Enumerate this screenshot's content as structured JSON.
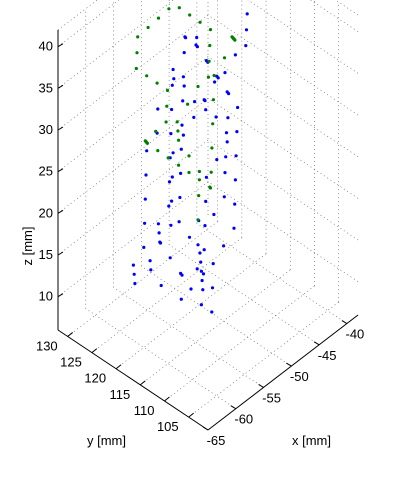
{
  "chart_data": {
    "type": "scatter",
    "projection": "3d",
    "title": "",
    "xlabel": "x [mm]",
    "ylabel": "y [mm]",
    "zlabel": "z [mm]",
    "xlim": [
      -65,
      -38
    ],
    "ylim": [
      101,
      132
    ],
    "zlim": [
      6,
      42
    ],
    "x_ticks": [
      "-65",
      "-60",
      "-55",
      "-50",
      "-45",
      "-40"
    ],
    "y_ticks": [
      "105",
      "110",
      "115",
      "120",
      "125",
      "130"
    ],
    "z_ticks": [
      "10",
      "15",
      "20",
      "25",
      "30",
      "35",
      "40"
    ],
    "grid": true,
    "legend": "none",
    "series": [
      {
        "color": "#0000ff",
        "points_xyz": [
          [
            -55,
            118,
            10
          ],
          [
            -54,
            119,
            12
          ],
          [
            -53,
            117,
            13
          ],
          [
            -52,
            118,
            15
          ],
          [
            -51,
            119,
            17
          ],
          [
            -50,
            117,
            18
          ],
          [
            -49,
            116,
            20
          ],
          [
            -48,
            117,
            22
          ],
          [
            -47,
            118,
            23
          ],
          [
            -46,
            119,
            25
          ],
          [
            -47,
            120,
            27
          ],
          [
            -48,
            121,
            28
          ],
          [
            -49,
            120,
            30
          ],
          [
            -50,
            119,
            31
          ],
          [
            -49,
            118,
            33
          ],
          [
            -48,
            117,
            34
          ],
          [
            -47,
            116,
            36
          ],
          [
            -46,
            115,
            37
          ],
          [
            -45,
            116,
            38
          ],
          [
            -44,
            117,
            39
          ],
          [
            -56,
            121,
            11
          ],
          [
            -57,
            122,
            13
          ],
          [
            -58,
            121,
            15
          ],
          [
            -57,
            120,
            17
          ],
          [
            -56,
            119,
            19
          ],
          [
            -55,
            120,
            21
          ],
          [
            -54,
            121,
            23
          ],
          [
            -53,
            122,
            25
          ],
          [
            -52,
            121,
            27
          ],
          [
            -51,
            120,
            29
          ],
          [
            -50,
            121,
            30
          ],
          [
            -51,
            122,
            32
          ],
          [
            -52,
            123,
            33
          ],
          [
            -53,
            122,
            35
          ],
          [
            -54,
            121,
            34
          ],
          [
            -55,
            120,
            32
          ],
          [
            -56,
            119,
            30
          ],
          [
            -57,
            118,
            28
          ],
          [
            -58,
            117,
            26
          ],
          [
            -59,
            116,
            24
          ],
          [
            -60,
            117,
            22
          ],
          [
            -59,
            118,
            20
          ],
          [
            -58,
            119,
            18
          ],
          [
            -57,
            118,
            16
          ],
          [
            -56,
            117,
            14
          ],
          [
            -55,
            116,
            12
          ],
          [
            -54,
            115,
            10
          ],
          [
            -53,
            114,
            9
          ],
          [
            -52,
            115,
            11
          ],
          [
            -51,
            116,
            13
          ],
          [
            -50,
            115,
            15
          ],
          [
            -49,
            114,
            17
          ],
          [
            -48,
            115,
            19
          ],
          [
            -47,
            116,
            21
          ],
          [
            -46,
            117,
            23
          ],
          [
            -45,
            118,
            25
          ],
          [
            -44,
            119,
            27
          ],
          [
            -45,
            120,
            29
          ],
          [
            -46,
            121,
            31
          ],
          [
            -47,
            122,
            33
          ],
          [
            -48,
            123,
            35
          ],
          [
            -49,
            124,
            36
          ],
          [
            -50,
            123,
            37
          ],
          [
            -51,
            122,
            36
          ],
          [
            -52,
            121,
            34
          ],
          [
            -53,
            120,
            32
          ],
          [
            -54,
            119,
            30
          ],
          [
            -55,
            118,
            28
          ],
          [
            -56,
            117,
            26
          ],
          [
            -57,
            116,
            24
          ],
          [
            -58,
            115,
            22
          ],
          [
            -57,
            114,
            20
          ],
          [
            -56,
            113,
            18
          ],
          [
            -55,
            114,
            16
          ],
          [
            -54,
            115,
            14
          ],
          [
            -53,
            116,
            12
          ],
          [
            -52,
            117,
            10
          ],
          [
            -51,
            118,
            11
          ],
          [
            -50,
            119,
            13
          ],
          [
            -49,
            120,
            15
          ],
          [
            -48,
            121,
            17
          ],
          [
            -47,
            122,
            19
          ],
          [
            -46,
            121,
            21
          ],
          [
            -45,
            120,
            23
          ],
          [
            -44,
            121,
            25
          ],
          [
            -43,
            122,
            27
          ],
          [
            -44,
            123,
            29
          ],
          [
            -45,
            124,
            31
          ],
          [
            -46,
            125,
            33
          ],
          [
            -47,
            124,
            35
          ],
          [
            -59,
            123,
            12
          ],
          [
            -60,
            122,
            14
          ],
          [
            -61,
            121,
            16
          ],
          [
            -60,
            120,
            18
          ],
          [
            -59,
            121,
            20
          ],
          [
            -58,
            122,
            22
          ],
          [
            -57,
            123,
            24
          ],
          [
            -56,
            124,
            26
          ],
          [
            -55,
            123,
            28
          ],
          [
            -54,
            124,
            30
          ]
        ]
      },
      {
        "color": "#008000",
        "points_xyz": [
          [
            -52,
            118,
            18
          ],
          [
            -51,
            119,
            20
          ],
          [
            -50,
            120,
            22
          ],
          [
            -51,
            121,
            24
          ],
          [
            -52,
            122,
            26
          ],
          [
            -53,
            121,
            28
          ],
          [
            -54,
            120,
            30
          ],
          [
            -53,
            119,
            32
          ],
          [
            -52,
            118,
            34
          ],
          [
            -51,
            117,
            35
          ],
          [
            -50,
            118,
            36
          ],
          [
            -49,
            119,
            37
          ],
          [
            -48,
            120,
            38
          ],
          [
            -49,
            121,
            39
          ],
          [
            -50,
            122,
            40
          ],
          [
            -51,
            123,
            41
          ],
          [
            -52,
            124,
            41
          ],
          [
            -53,
            125,
            40
          ],
          [
            -54,
            126,
            39
          ],
          [
            -55,
            127,
            38
          ],
          [
            -56,
            126,
            37
          ],
          [
            -57,
            125,
            36
          ],
          [
            -56,
            124,
            35
          ],
          [
            -55,
            123,
            34
          ],
          [
            -54,
            122,
            33
          ],
          [
            -55,
            121,
            32
          ],
          [
            -56,
            120,
            31
          ],
          [
            -57,
            121,
            30
          ],
          [
            -58,
            122,
            29
          ],
          [
            -57,
            123,
            28
          ],
          [
            -56,
            124,
            27
          ],
          [
            -55,
            125,
            26
          ],
          [
            -54,
            124,
            25
          ],
          [
            -53,
            123,
            24
          ],
          [
            -52,
            122,
            23
          ],
          [
            -51,
            121,
            22
          ],
          [
            -50,
            120,
            21
          ],
          [
            -49,
            119,
            20
          ],
          [
            -48,
            120,
            19
          ],
          [
            -47,
            121,
            20
          ],
          [
            -46,
            122,
            22
          ],
          [
            -45,
            123,
            24
          ],
          [
            -44,
            124,
            26
          ],
          [
            -43,
            125,
            28
          ],
          [
            -42,
            124,
            30
          ],
          [
            -41,
            123,
            32
          ],
          [
            -42,
            122,
            33
          ],
          [
            -43,
            121,
            34
          ],
          [
            -44,
            120,
            35
          ],
          [
            -45,
            119,
            36
          ]
        ]
      }
    ]
  }
}
